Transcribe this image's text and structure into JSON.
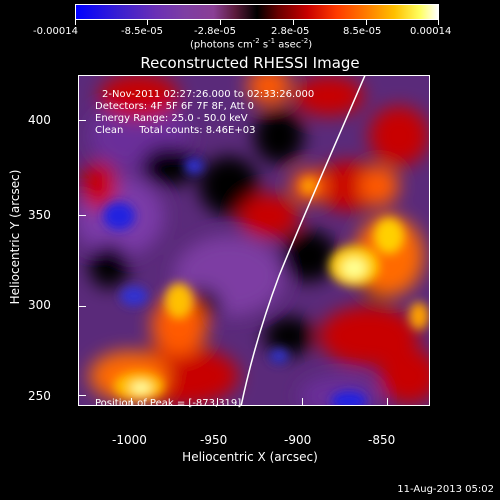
{
  "colorbar": {
    "tick_labels": [
      "-0.00014",
      "-8.5e-05",
      "-2.8e-05",
      "2.8e-05",
      "8.5e-05",
      "0.00014"
    ],
    "unit_prefix": "(photons cm",
    "unit_sup1": "-2",
    "unit_mid": " s",
    "unit_sup2": "-1",
    "unit_mid2": " asec",
    "unit_sup3": "-2",
    "unit_suffix": ")"
  },
  "plot": {
    "title": "Reconstructed RHESSI Image",
    "xlabel": "Heliocentric X (arcsec)",
    "ylabel": "Heliocentric Y (arcsec)",
    "x_ticks": [
      "-1000",
      "-950",
      "-900",
      "-850"
    ],
    "y_ticks": [
      "400",
      "350",
      "300",
      "250"
    ],
    "info_lines": [
      "2-Nov-2011 02:27:26.000 to 02:33:26.000",
      "Detectors: 4F 5F 6F 7F 8F, Att 0",
      "Energy Range: 25.0 - 50.0 keV",
      "Clean     Total counts: 8.46E+03"
    ],
    "peak_label": "Position of Peak = [-873,319]"
  },
  "footer": {
    "date": "11-Aug-2013 05:02"
  }
}
